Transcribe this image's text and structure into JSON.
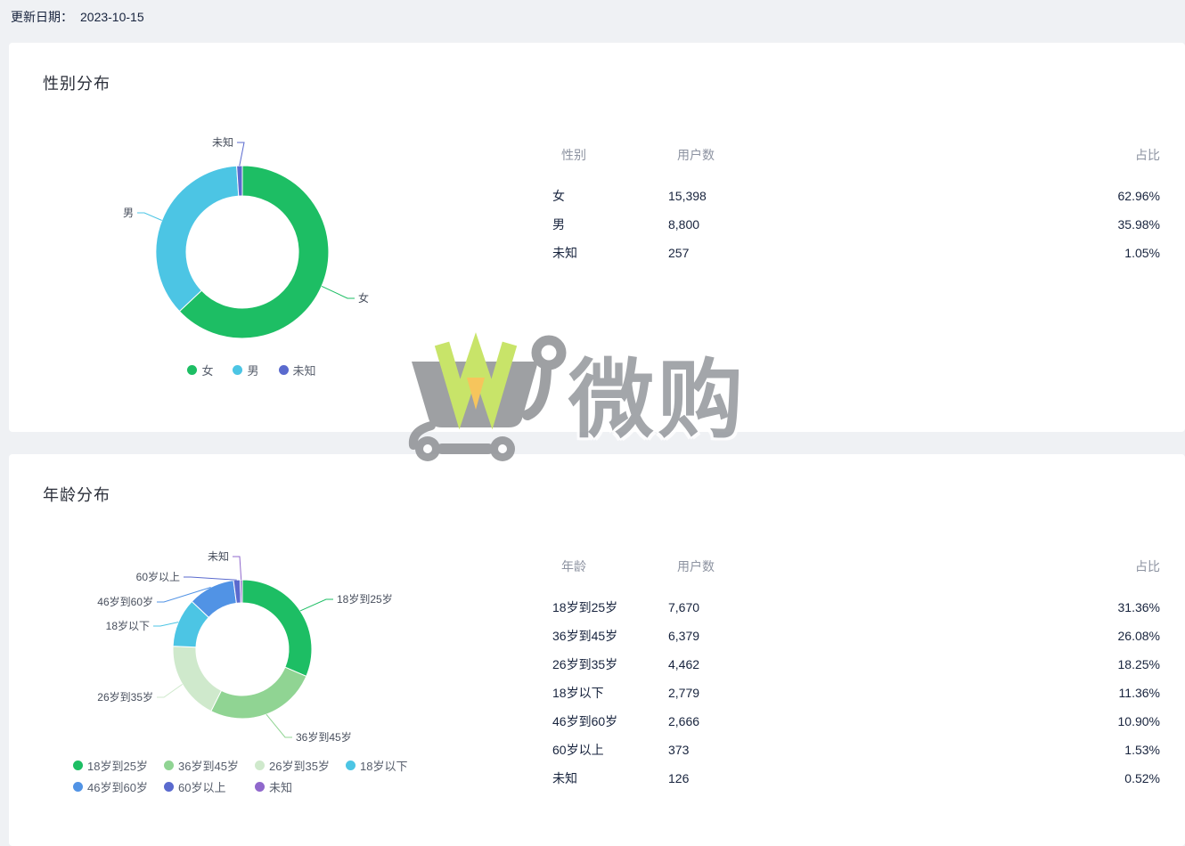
{
  "page": {
    "update_date_label": "更新日期：",
    "update_date_value": "2023-10-15",
    "background_color": "#eff1f4"
  },
  "watermark": {
    "text": "微购",
    "cart_color": "#8e9094",
    "w_green": "#bfe050",
    "w_orange": "#f5bb40"
  },
  "cards": [
    {
      "title": "性别分布",
      "table": {
        "headers": [
          "性别",
          "用户数",
          "占比"
        ],
        "rows": [
          {
            "label": "女",
            "count": "15,398",
            "percent": "62.96%"
          },
          {
            "label": "男",
            "count": "8,800",
            "percent": "35.98%"
          },
          {
            "label": "未知",
            "count": "257",
            "percent": "1.05%"
          }
        ]
      }
    },
    {
      "title": "年龄分布",
      "table": {
        "headers": [
          "年龄",
          "用户数",
          "占比"
        ],
        "rows": [
          {
            "label": "18岁到25岁",
            "count": "7,670",
            "percent": "31.36%"
          },
          {
            "label": "36岁到45岁",
            "count": "6,379",
            "percent": "26.08%"
          },
          {
            "label": "26岁到35岁",
            "count": "4,462",
            "percent": "18.25%"
          },
          {
            "label": "18岁以下",
            "count": "2,779",
            "percent": "11.36%"
          },
          {
            "label": "46岁到60岁",
            "count": "2,666",
            "percent": "10.90%"
          },
          {
            "label": "60岁以上",
            "count": "373",
            "percent": "1.53%"
          },
          {
            "label": "未知",
            "count": "126",
            "percent": "0.52%"
          }
        ]
      }
    }
  ],
  "chart_data": [
    {
      "type": "pie",
      "donut": true,
      "title": "性别分布",
      "labels": [
        "女",
        "男",
        "未知"
      ],
      "values": [
        15398,
        8800,
        257
      ],
      "percents": [
        "62.96%",
        "35.98%",
        "1.05%"
      ],
      "colors": [
        "#1dbe64",
        "#4cc5e4",
        "#5a6ace"
      ],
      "legend_position": "bottom"
    },
    {
      "type": "pie",
      "donut": true,
      "title": "年龄分布",
      "labels": [
        "18岁到25岁",
        "36岁到45岁",
        "26岁到35岁",
        "18岁以下",
        "46岁到60岁",
        "60岁以上",
        "未知"
      ],
      "values": [
        7670,
        6379,
        4462,
        2779,
        2666,
        373,
        126
      ],
      "percents": [
        "31.36%",
        "26.08%",
        "18.25%",
        "11.36%",
        "10.90%",
        "1.53%",
        "0.52%"
      ],
      "colors": [
        "#1dbe64",
        "#90d493",
        "#cfe9cc",
        "#4cc5e4",
        "#5193e5",
        "#5a6ace",
        "#9068cc"
      ],
      "legend_position": "bottom"
    }
  ]
}
